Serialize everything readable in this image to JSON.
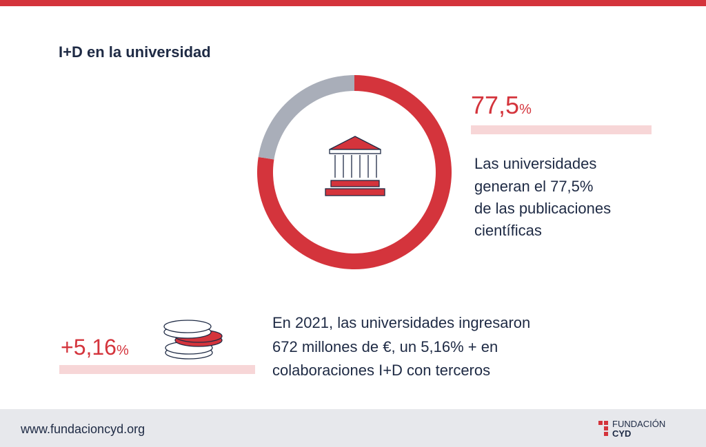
{
  "header": {
    "title": "I+D en la universidad"
  },
  "chart_data": {
    "type": "donut",
    "values": [
      77.5,
      22.5
    ],
    "value_labels": [
      "77,5",
      null
    ],
    "unit": "%",
    "colors": [
      "#d4343c",
      "#a9aeb9"
    ]
  },
  "stat_1": {
    "text": [
      "Las universidades",
      "generan el 77,5%",
      "de las publicaciones",
      "científicas"
    ]
  },
  "stat_2": {
    "number": "+5,16",
    "unit": "%",
    "text": [
      "En 2021, las universidades ingresaron",
      "672 millones de €, un 5,16% + en",
      "colaboraciones I+D con terceros"
    ]
  },
  "footer": {
    "url": "www.fundacioncyd.org",
    "logo": [
      "FUNDACIÓN",
      "CYD"
    ]
  }
}
